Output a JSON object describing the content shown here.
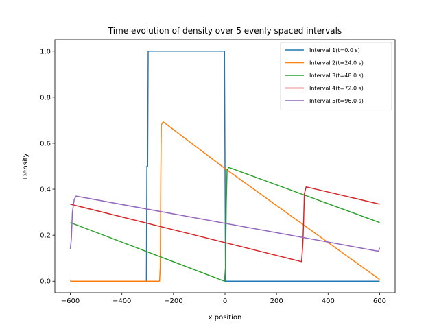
{
  "chart_data": {
    "type": "line",
    "title": "Time evolution of density over 5 evenly spaced intervals",
    "xlabel": "x position",
    "ylabel": "Density",
    "xlim": [
      -660,
      660
    ],
    "ylim": [
      -0.05,
      1.05
    ],
    "xticks": [
      -600,
      -400,
      -200,
      0,
      200,
      400,
      600
    ],
    "xtick_labels": [
      "−600",
      "−400",
      "−200",
      "0",
      "200",
      "400",
      "600"
    ],
    "yticks": [
      0.0,
      0.2,
      0.4,
      0.6,
      0.8,
      1.0
    ],
    "ytick_labels": [
      "0.0",
      "0.2",
      "0.4",
      "0.6",
      "0.8",
      "1.0"
    ],
    "grid": false,
    "legend_position": "top-right",
    "series": [
      {
        "name": "Interval 1(t=0.0 s)",
        "color": "#1f77b4",
        "points": [
          [
            -600,
            0.0
          ],
          [
            -305,
            0.0
          ],
          [
            -303,
            0.5
          ],
          [
            -300,
            0.5
          ],
          [
            -298,
            1.0
          ],
          [
            -2,
            1.0
          ],
          [
            0,
            0.5
          ],
          [
            2,
            0.0
          ],
          [
            600,
            0.0
          ]
        ]
      },
      {
        "name": "Interval 2(t=24.0 s)",
        "color": "#ff7f0e",
        "points": [
          [
            -600,
            0.007
          ],
          [
            -597,
            0.0
          ],
          [
            -254,
            0.0
          ],
          [
            -251,
            0.06
          ],
          [
            -249,
            0.47
          ],
          [
            -247,
            0.68
          ],
          [
            -240,
            0.693
          ],
          [
            0,
            0.49
          ],
          [
            597,
            0.01
          ],
          [
            600,
            0.007
          ]
        ]
      },
      {
        "name": "Interval 3(t=48.0 s)",
        "color": "#2ca02c",
        "points": [
          [
            -600,
            0.255
          ],
          [
            -2,
            0.0
          ],
          [
            2,
            0.06
          ],
          [
            5,
            0.34
          ],
          [
            8,
            0.48
          ],
          [
            14,
            0.495
          ],
          [
            600,
            0.255
          ]
        ]
      },
      {
        "name": "Interval 4(t=72.0 s)",
        "color": "#d62728",
        "points": [
          [
            -600,
            0.335
          ],
          [
            297,
            0.085
          ],
          [
            302,
            0.16
          ],
          [
            305,
            0.26
          ],
          [
            308,
            0.38
          ],
          [
            315,
            0.41
          ],
          [
            600,
            0.335
          ]
        ]
      },
      {
        "name": "Interval 5(t=96.0 s)",
        "color": "#9467bd",
        "points": [
          [
            -600,
            0.14
          ],
          [
            -596,
            0.185
          ],
          [
            -592,
            0.3
          ],
          [
            -585,
            0.355
          ],
          [
            -578,
            0.37
          ],
          [
            596,
            0.13
          ],
          [
            600,
            0.145
          ]
        ]
      }
    ]
  }
}
